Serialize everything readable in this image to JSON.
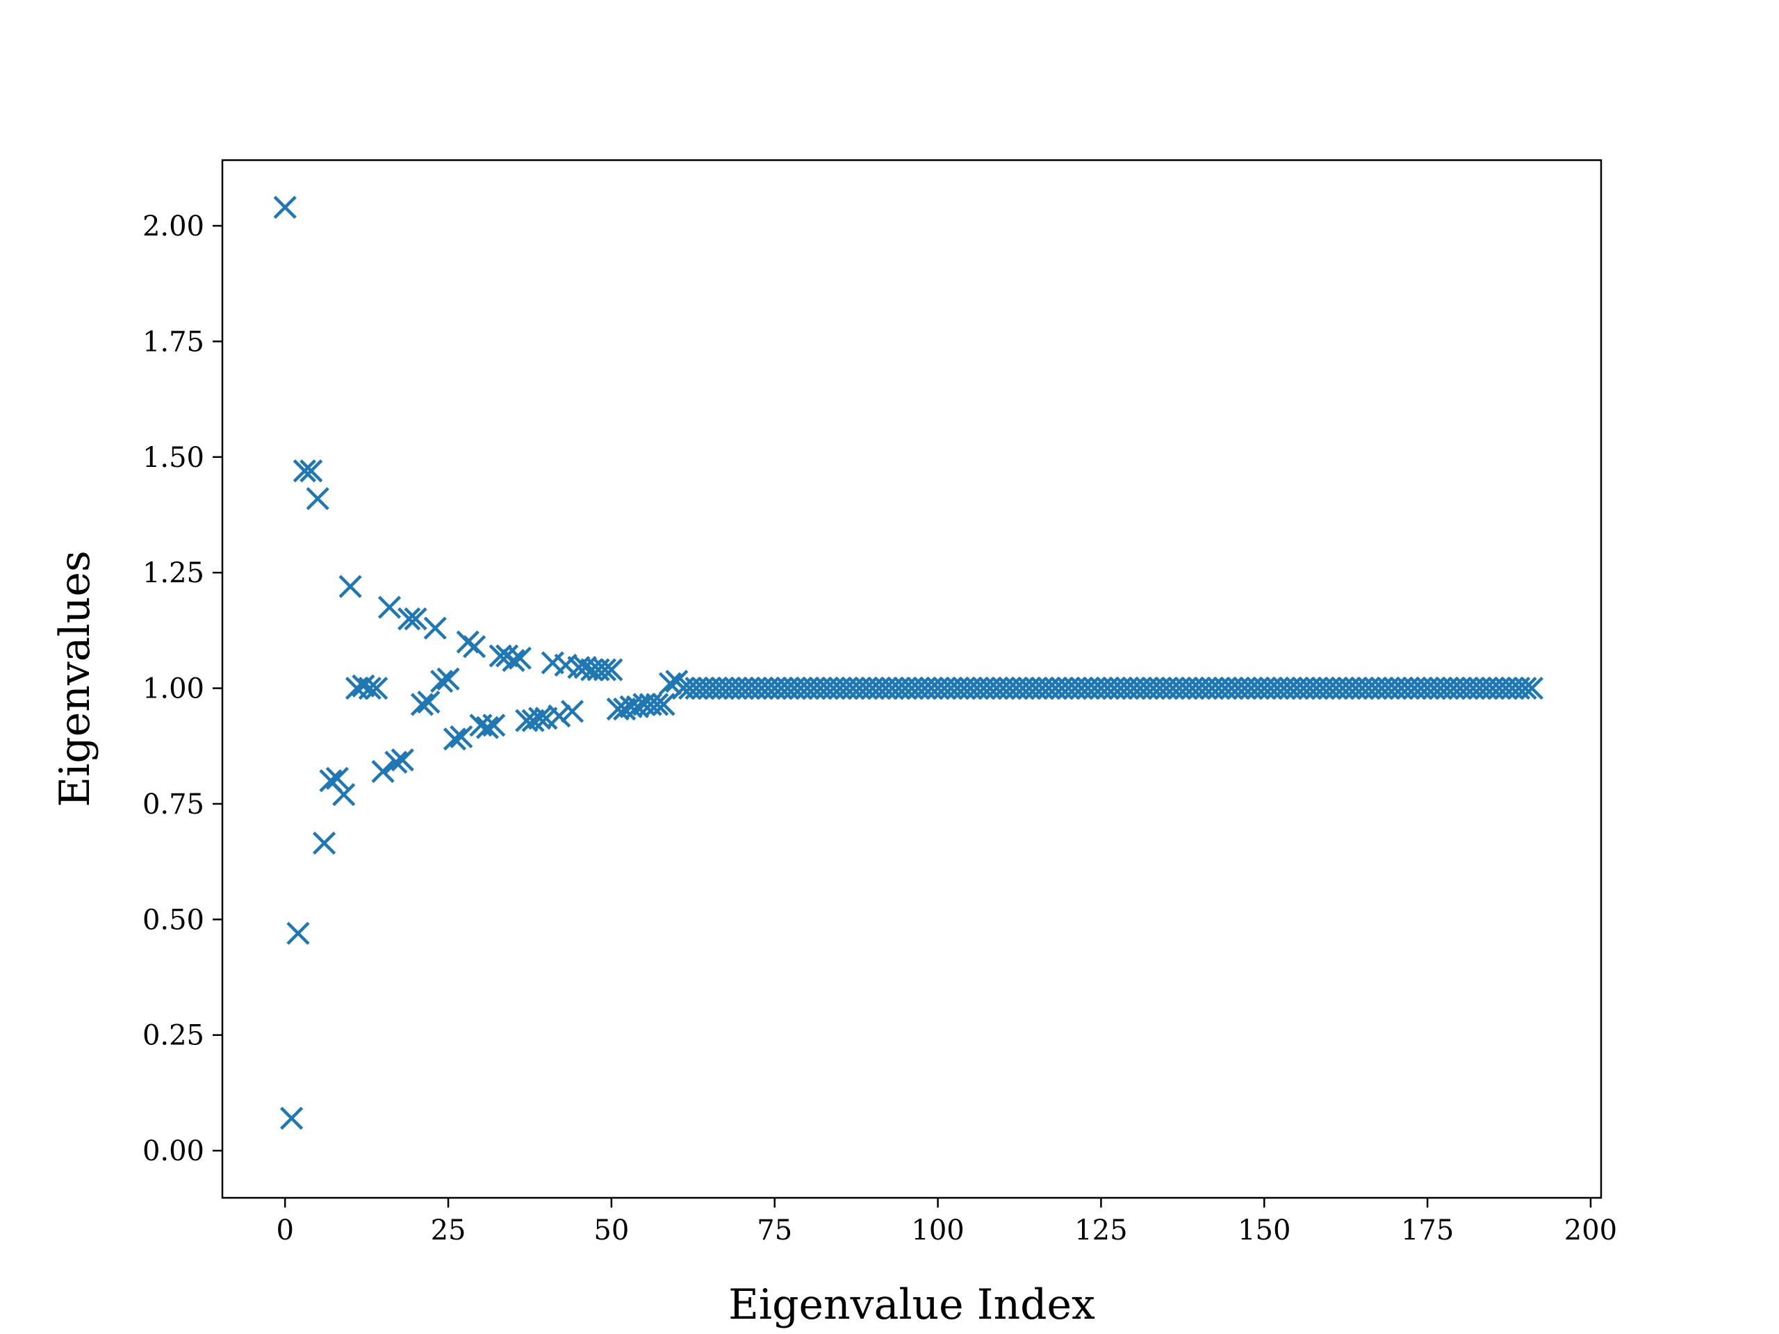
{
  "chart_data": {
    "type": "scatter",
    "marker": "x",
    "color": "#1f77b4",
    "title": "",
    "xlabel": "Eigenvalue Index",
    "ylabel": "Eigenvalues",
    "xlim": [
      -9.6,
      201.6
    ],
    "ylim": [
      -0.102,
      2.142
    ],
    "xticks": [
      0,
      25,
      50,
      75,
      100,
      125,
      150,
      175,
      200
    ],
    "xtick_labels": [
      "0",
      "25",
      "50",
      "75",
      "100",
      "125",
      "150",
      "175",
      "200"
    ],
    "yticks": [
      0.0,
      0.25,
      0.5,
      0.75,
      1.0,
      1.25,
      1.5,
      1.75,
      2.0
    ],
    "ytick_labels": [
      "0.00",
      "0.25",
      "0.50",
      "0.75",
      "1.00",
      "1.25",
      "1.50",
      "1.75",
      "2.00"
    ],
    "grid": false,
    "legend": "none",
    "points": [
      [
        0,
        2.04
      ],
      [
        1,
        0.07
      ],
      [
        2,
        0.47
      ],
      [
        3,
        1.47
      ],
      [
        4,
        1.47
      ],
      [
        5,
        1.41
      ],
      [
        6,
        0.665
      ],
      [
        7,
        0.8
      ],
      [
        8,
        0.805
      ],
      [
        9,
        0.77
      ],
      [
        10,
        1.22
      ],
      [
        11,
        1.0
      ],
      [
        12,
        1.005
      ],
      [
        13,
        1.0
      ],
      [
        14,
        1.0
      ],
      [
        15,
        0.82
      ],
      [
        16,
        1.175
      ],
      [
        17,
        0.84
      ],
      [
        18,
        0.845
      ],
      [
        19,
        1.15
      ],
      [
        20,
        1.15
      ],
      [
        21,
        0.965
      ],
      [
        22,
        0.97
      ],
      [
        23,
        1.13
      ],
      [
        24,
        1.015
      ],
      [
        25,
        1.02
      ],
      [
        26,
        0.89
      ],
      [
        27,
        0.895
      ],
      [
        28,
        1.1
      ],
      [
        29,
        1.09
      ],
      [
        30,
        0.92
      ],
      [
        31,
        0.915
      ],
      [
        32,
        0.92
      ],
      [
        33,
        1.07
      ],
      [
        34,
        1.07
      ],
      [
        35,
        1.06
      ],
      [
        36,
        1.065
      ],
      [
        37,
        0.93
      ],
      [
        38,
        0.93
      ],
      [
        39,
        0.935
      ],
      [
        40,
        0.935
      ],
      [
        41,
        1.055
      ],
      [
        42,
        0.94
      ],
      [
        43,
        1.05
      ],
      [
        44,
        0.95
      ],
      [
        45,
        1.045
      ],
      [
        46,
        1.045
      ],
      [
        47,
        1.04
      ],
      [
        48,
        1.04
      ],
      [
        49,
        1.04
      ],
      [
        50,
        1.04
      ],
      [
        51,
        0.955
      ],
      [
        52,
        0.955
      ],
      [
        53,
        0.96
      ],
      [
        54,
        0.96
      ],
      [
        55,
        0.965
      ],
      [
        56,
        0.965
      ],
      [
        57,
        0.965
      ],
      [
        58,
        0.965
      ],
      [
        59,
        1.01
      ],
      [
        60,
        1.015
      ],
      [
        61,
        1.0
      ],
      [
        62,
        1.0
      ],
      [
        63,
        1.0
      ],
      [
        64,
        1.0
      ],
      [
        65,
        1.0
      ],
      [
        66,
        1.0
      ],
      [
        67,
        1.0
      ],
      [
        68,
        1.0
      ],
      [
        69,
        1.0
      ],
      [
        70,
        1.0
      ],
      [
        71,
        1.0
      ],
      [
        72,
        1.0
      ],
      [
        73,
        1.0
      ],
      [
        74,
        1.0
      ],
      [
        75,
        1.0
      ],
      [
        76,
        1.0
      ],
      [
        77,
        1.0
      ],
      [
        78,
        1.0
      ],
      [
        79,
        1.0
      ],
      [
        80,
        1.0
      ],
      [
        81,
        1.0
      ],
      [
        82,
        1.0
      ],
      [
        83,
        1.0
      ],
      [
        84,
        1.0
      ],
      [
        85,
        1.0
      ],
      [
        86,
        1.0
      ],
      [
        87,
        1.0
      ],
      [
        88,
        1.0
      ],
      [
        89,
        1.0
      ],
      [
        90,
        1.0
      ],
      [
        91,
        1.0
      ],
      [
        92,
        1.0
      ],
      [
        93,
        1.0
      ],
      [
        94,
        1.0
      ],
      [
        95,
        1.0
      ],
      [
        96,
        1.0
      ],
      [
        97,
        1.0
      ],
      [
        98,
        1.0
      ],
      [
        99,
        1.0
      ],
      [
        100,
        1.0
      ],
      [
        101,
        1.0
      ],
      [
        102,
        1.0
      ],
      [
        103,
        1.0
      ],
      [
        104,
        1.0
      ],
      [
        105,
        1.0
      ],
      [
        106,
        1.0
      ],
      [
        107,
        1.0
      ],
      [
        108,
        1.0
      ],
      [
        109,
        1.0
      ],
      [
        110,
        1.0
      ],
      [
        111,
        1.0
      ],
      [
        112,
        1.0
      ],
      [
        113,
        1.0
      ],
      [
        114,
        1.0
      ],
      [
        115,
        1.0
      ],
      [
        116,
        1.0
      ],
      [
        117,
        1.0
      ],
      [
        118,
        1.0
      ],
      [
        119,
        1.0
      ],
      [
        120,
        1.0
      ],
      [
        121,
        1.0
      ],
      [
        122,
        1.0
      ],
      [
        123,
        1.0
      ],
      [
        124,
        1.0
      ],
      [
        125,
        1.0
      ],
      [
        126,
        1.0
      ],
      [
        127,
        1.0
      ],
      [
        128,
        1.0
      ],
      [
        129,
        1.0
      ],
      [
        130,
        1.0
      ],
      [
        131,
        1.0
      ],
      [
        132,
        1.0
      ],
      [
        133,
        1.0
      ],
      [
        134,
        1.0
      ],
      [
        135,
        1.0
      ],
      [
        136,
        1.0
      ],
      [
        137,
        1.0
      ],
      [
        138,
        1.0
      ],
      [
        139,
        1.0
      ],
      [
        140,
        1.0
      ],
      [
        141,
        1.0
      ],
      [
        142,
        1.0
      ],
      [
        143,
        1.0
      ],
      [
        144,
        1.0
      ],
      [
        145,
        1.0
      ],
      [
        146,
        1.0
      ],
      [
        147,
        1.0
      ],
      [
        148,
        1.0
      ],
      [
        149,
        1.0
      ],
      [
        150,
        1.0
      ],
      [
        151,
        1.0
      ],
      [
        152,
        1.0
      ],
      [
        153,
        1.0
      ],
      [
        154,
        1.0
      ],
      [
        155,
        1.0
      ],
      [
        156,
        1.0
      ],
      [
        157,
        1.0
      ],
      [
        158,
        1.0
      ],
      [
        159,
        1.0
      ],
      [
        160,
        1.0
      ],
      [
        161,
        1.0
      ],
      [
        162,
        1.0
      ],
      [
        163,
        1.0
      ],
      [
        164,
        1.0
      ],
      [
        165,
        1.0
      ],
      [
        166,
        1.0
      ],
      [
        167,
        1.0
      ],
      [
        168,
        1.0
      ],
      [
        169,
        1.0
      ],
      [
        170,
        1.0
      ],
      [
        171,
        1.0
      ],
      [
        172,
        1.0
      ],
      [
        173,
        1.0
      ],
      [
        174,
        1.0
      ],
      [
        175,
        1.0
      ],
      [
        176,
        1.0
      ],
      [
        177,
        1.0
      ],
      [
        178,
        1.0
      ],
      [
        179,
        1.0
      ],
      [
        180,
        1.0
      ],
      [
        181,
        1.0
      ],
      [
        182,
        1.0
      ],
      [
        183,
        1.0
      ],
      [
        184,
        1.0
      ],
      [
        185,
        1.0
      ],
      [
        186,
        1.0
      ],
      [
        187,
        1.0
      ],
      [
        188,
        1.0
      ],
      [
        189,
        1.0
      ],
      [
        190,
        1.0
      ],
      [
        191,
        1.0
      ]
    ]
  }
}
